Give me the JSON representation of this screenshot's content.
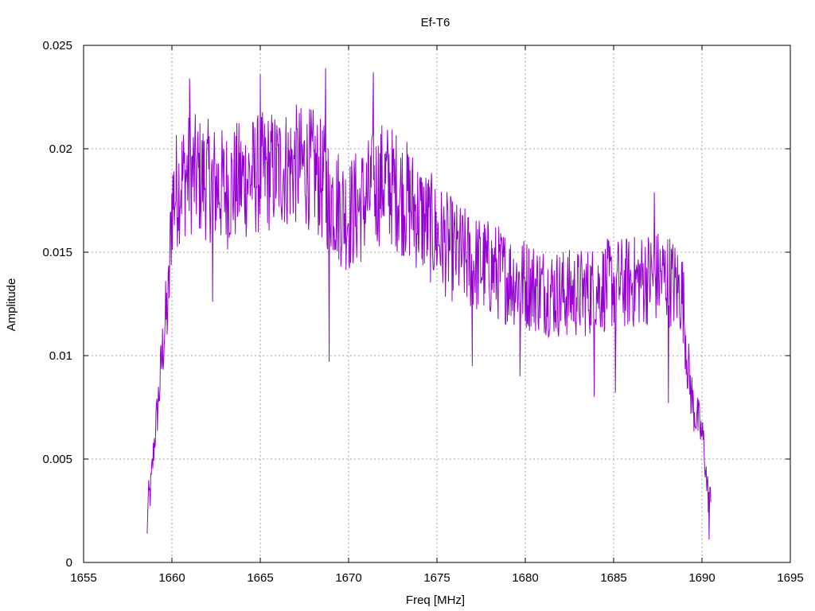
{
  "chart_data": {
    "type": "line",
    "title": "Ef-T6",
    "xlabel": "Freq [MHz]",
    "ylabel": "Amplitude",
    "xlim": [
      1655,
      1695
    ],
    "ylim": [
      0,
      0.025
    ],
    "x_ticks": [
      1655,
      1660,
      1665,
      1670,
      1675,
      1680,
      1685,
      1690,
      1695
    ],
    "y_ticks": [
      0,
      0.005,
      0.01,
      0.015,
      0.02,
      0.025
    ],
    "x_tick_labels": [
      "1655",
      "1660",
      "1665",
      "1670",
      "1675",
      "1680",
      "1685",
      "1690",
      "1695"
    ],
    "y_tick_labels": [
      "0",
      "0.005",
      "0.01",
      "0.015",
      "0.02",
      "0.025"
    ],
    "grid": true,
    "legend": "none",
    "series": [
      {
        "color": "#9400d3",
        "x_range": [
          1658.6,
          1690.5
        ],
        "envelope": {
          "x": [
            1658.6,
            1658.8,
            1659.0,
            1659.2,
            1659.4,
            1659.6,
            1659.8,
            1660.0,
            1660.5,
            1661.0,
            1662.0,
            1663.0,
            1664.0,
            1665.0,
            1666.0,
            1667.0,
            1668.0,
            1668.8,
            1669.5,
            1670.0,
            1671.0,
            1672.0,
            1673.0,
            1674.0,
            1675.0,
            1676.0,
            1677.0,
            1678.0,
            1679.0,
            1680.0,
            1681.0,
            1682.0,
            1683.0,
            1684.0,
            1685.0,
            1686.0,
            1687.0,
            1688.0,
            1688.9,
            1689.2,
            1689.5,
            1689.8,
            1690.1,
            1690.3,
            1690.5
          ],
          "y": [
            0.0026,
            0.0035,
            0.0058,
            0.0075,
            0.0095,
            0.0115,
            0.0125,
            0.0175,
            0.0185,
            0.0188,
            0.0185,
            0.018,
            0.0185,
            0.0188,
            0.019,
            0.0192,
            0.019,
            0.018,
            0.0172,
            0.0168,
            0.0175,
            0.0185,
            0.0178,
            0.0168,
            0.0158,
            0.015,
            0.0145,
            0.0142,
            0.0138,
            0.0135,
            0.0132,
            0.013,
            0.013,
            0.0132,
            0.0135,
            0.0135,
            0.0138,
            0.0138,
            0.013,
            0.0095,
            0.0075,
            0.0068,
            0.0058,
            0.0035,
            0.0028
          ]
        },
        "notable_points": [
          {
            "x": 1658.6,
            "y": 0.0014
          },
          {
            "x": 1661.0,
            "y": 0.0234
          },
          {
            "x": 1662.3,
            "y": 0.0126
          },
          {
            "x": 1665.0,
            "y": 0.0236
          },
          {
            "x": 1668.7,
            "y": 0.0239
          },
          {
            "x": 1668.9,
            "y": 0.0097
          },
          {
            "x": 1671.4,
            "y": 0.0237
          },
          {
            "x": 1677.0,
            "y": 0.0095
          },
          {
            "x": 1679.7,
            "y": 0.009
          },
          {
            "x": 1683.9,
            "y": 0.008
          },
          {
            "x": 1685.1,
            "y": 0.0082
          },
          {
            "x": 1687.3,
            "y": 0.0179
          },
          {
            "x": 1688.1,
            "y": 0.0077
          },
          {
            "x": 1690.4,
            "y": 0.0011
          }
        ]
      }
    ]
  }
}
